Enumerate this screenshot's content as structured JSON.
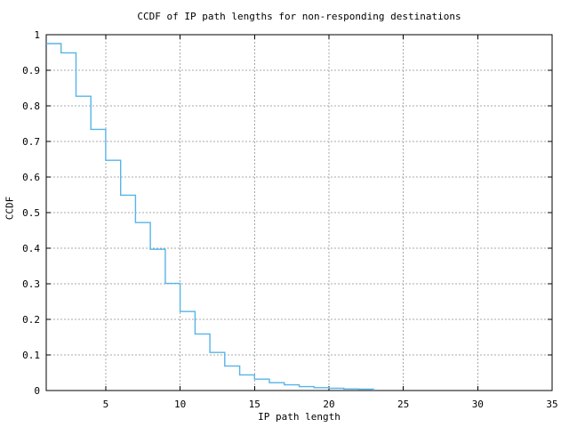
{
  "chart_data": {
    "type": "line",
    "style": "steps",
    "title": "CCDF of IP path lengths for non-responding destinations",
    "xlabel": "IP path length",
    "ylabel": "CCDF",
    "xlim": [
      1,
      35
    ],
    "ylim": [
      0,
      1
    ],
    "x_ticks": [
      5,
      10,
      15,
      20,
      25,
      30,
      35
    ],
    "x_tick_labels": [
      "5",
      "10",
      "15",
      "20",
      "25",
      "30",
      "35"
    ],
    "y_ticks": [
      0,
      0.1,
      0.2,
      0.3,
      0.4,
      0.5,
      0.6,
      0.7,
      0.8,
      0.9,
      1
    ],
    "y_tick_labels": [
      "0",
      "0.1",
      "0.2",
      "0.3",
      "0.4",
      "0.5",
      "0.6",
      "0.7",
      "0.8",
      "0.9",
      "1"
    ],
    "grid": true,
    "legend": "none",
    "series": [
      {
        "name": "CCDF",
        "color": "#56b4e9",
        "points": [
          [
            1,
            0.975
          ],
          [
            2,
            0.949
          ],
          [
            3,
            0.827
          ],
          [
            4,
            0.734
          ],
          [
            5,
            0.647
          ],
          [
            6,
            0.549
          ],
          [
            7,
            0.472
          ],
          [
            8,
            0.397
          ],
          [
            9,
            0.301
          ],
          [
            10,
            0.222
          ],
          [
            11,
            0.159
          ],
          [
            12,
            0.107
          ],
          [
            13,
            0.069
          ],
          [
            14,
            0.044
          ],
          [
            15,
            0.032
          ],
          [
            16,
            0.022
          ],
          [
            17,
            0.016
          ],
          [
            18,
            0.011
          ],
          [
            19,
            0.008
          ],
          [
            20,
            0.0065
          ],
          [
            21,
            0.0045
          ],
          [
            22,
            0.004
          ],
          [
            23,
            0.0
          ]
        ]
      }
    ]
  },
  "colors": {
    "background": "#ffffff",
    "axis": "#000000",
    "grid": "#a8a8a8",
    "curve": "#56b4e9",
    "text": "#000000"
  }
}
